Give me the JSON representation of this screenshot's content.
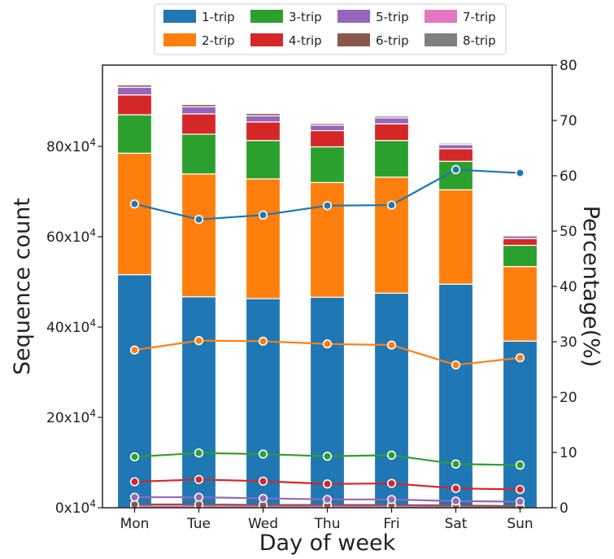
{
  "chart_data": {
    "type": "bar",
    "categories": [
      "Mon",
      "Tue",
      "Wed",
      "Thu",
      "Fri",
      "Sat",
      "Sun"
    ],
    "xlabel": "Day of week",
    "ylabel": "Sequence count",
    "y2label": "Percentage(%)",
    "ylim": [
      0,
      98
    ],
    "y2lim": [
      0,
      80
    ],
    "yticks": [
      {
        "value": 0,
        "label": "0x10"
      },
      {
        "value": 20,
        "label": "20x10"
      },
      {
        "value": 40,
        "label": "40x10"
      },
      {
        "value": 60,
        "label": "60x10"
      },
      {
        "value": 80,
        "label": "80x10"
      }
    ],
    "ytick_exponent": "4",
    "y2ticks": [
      0,
      10,
      20,
      30,
      40,
      50,
      60,
      70,
      80
    ],
    "legend_position": "top",
    "series": [
      {
        "name": "1-trip",
        "color": "#1f77b4",
        "values": [
          51.6,
          46.7,
          46.3,
          46.6,
          47.5,
          49.5,
          36.9
        ],
        "percent": [
          54.9,
          52.1,
          52.9,
          54.6,
          54.7,
          61.1,
          60.5
        ]
      },
      {
        "name": "2-trip",
        "color": "#ff7f0e",
        "values": [
          26.9,
          27.2,
          26.5,
          25.4,
          25.7,
          20.9,
          16.5
        ],
        "percent": [
          28.5,
          30.2,
          30.1,
          29.6,
          29.4,
          25.8,
          27.1
        ]
      },
      {
        "name": "3-trip",
        "color": "#2ca02c",
        "values": [
          8.5,
          8.8,
          8.5,
          7.9,
          8.1,
          6.3,
          4.7
        ],
        "percent": [
          9.2,
          9.9,
          9.7,
          9.3,
          9.5,
          7.9,
          7.7
        ]
      },
      {
        "name": "4-trip",
        "color": "#d62728",
        "values": [
          4.4,
          4.5,
          4.1,
          3.6,
          3.7,
          2.8,
          1.5
        ],
        "percent": [
          4.7,
          5.1,
          4.8,
          4.3,
          4.4,
          3.5,
          3.3
        ]
      },
      {
        "name": "5-trip",
        "color": "#9467bd",
        "values": [
          1.7,
          1.6,
          1.4,
          1.2,
          1.3,
          0.9,
          0.6
        ],
        "percent": [
          1.9,
          1.9,
          1.7,
          1.5,
          1.5,
          1.2,
          1.1
        ]
      },
      {
        "name": "6-trip",
        "color": "#8c564b",
        "values": [
          0.5,
          0.5,
          0.5,
          0.4,
          0.4,
          0.3,
          0.2
        ],
        "percent": [
          0.6,
          0.6,
          0.5,
          0.5,
          0.5,
          0.4,
          0.3
        ]
      },
      {
        "name": "7-trip",
        "color": "#e377c2",
        "values": [
          0.2,
          0.2,
          0.2,
          0.2,
          0.2,
          0.1,
          0.1
        ],
        "percent": [
          0.25,
          0.25,
          0.2,
          0.2,
          0.2,
          0.15,
          0.15
        ]
      },
      {
        "name": "8-trip",
        "color": "#7f7f7f",
        "values": [
          0.1,
          0.1,
          0.1,
          0.1,
          0.1,
          0.05,
          0.05
        ],
        "percent": [
          0.1,
          0.1,
          0.1,
          0.1,
          0.1,
          0.05,
          0.05
        ]
      }
    ]
  }
}
